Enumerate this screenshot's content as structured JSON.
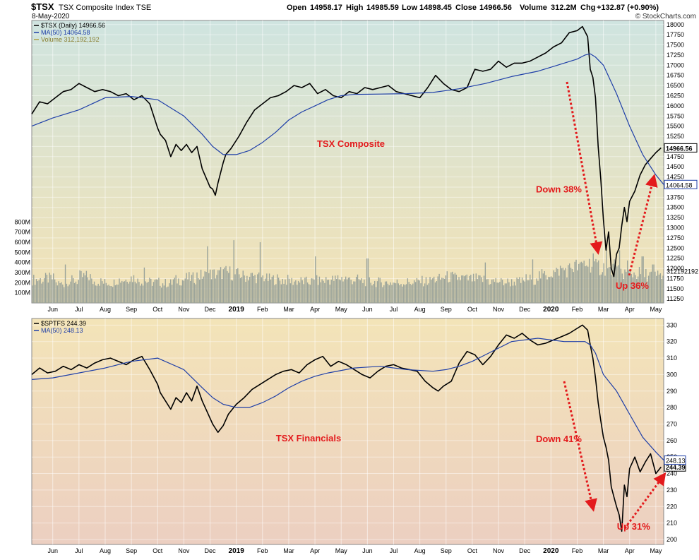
{
  "colors": {
    "price_line": "#000000",
    "ma_line": "#1f3fa8",
    "volume": "#9aa39a",
    "annotation": "#e31a1c",
    "top_bg_top": "#cfe4e0",
    "top_bg_bottom": "#f3e2b4",
    "bottom_bg_top": "#f3e4b8",
    "bottom_bg_bottom": "#eccfc1"
  },
  "header": {
    "symbol": "$TSX",
    "name": "TSX Composite Index  TSE",
    "date": "8-May-2020",
    "open_label": "Open",
    "open": "14958.17",
    "high_label": "High",
    "high": "14985.59",
    "low_label": "Low",
    "low": "14898.45",
    "close_label": "Close",
    "close": "14966.56",
    "volume_label": "Volume",
    "volume": "312.2M",
    "chg_label": "Chg",
    "chg": "+132.87 (+0.90%)",
    "credit": "© StockCharts.com"
  },
  "chart_data": [
    {
      "type": "line",
      "panel": "TSX Composite",
      "legend": [
        "$TSX (Daily) 14966.56",
        "MA(50) 14064.58",
        "Volume 312,192,192"
      ],
      "watermark": "TSX Composite",
      "x_ticks": [
        "Jun",
        "Jul",
        "Aug",
        "Sep",
        "Oct",
        "Nov",
        "Dec",
        "2019",
        "Feb",
        "Mar",
        "Apr",
        "May",
        "Jun",
        "Jul",
        "Aug",
        "Sep",
        "Oct",
        "Nov",
        "Dec",
        "2020",
        "Feb",
        "Mar",
        "Apr",
        "May"
      ],
      "x_tick_pos": [
        1.5,
        2.5,
        3.5,
        4.5,
        5.5,
        6.5,
        7.5,
        8.5,
        9.5,
        10.5,
        11.5,
        12.5,
        13.5,
        14.5,
        15.5,
        16.5,
        17.5,
        18.5,
        19.5,
        20.5,
        21.5,
        22.5,
        23.5,
        24.5
      ],
      "x_range": [
        0.7,
        24.8
      ],
      "y_range": [
        11150,
        18100
      ],
      "y_ticks": [
        11250,
        11500,
        11750,
        12000,
        12250,
        12500,
        12750,
        13000,
        13250,
        13500,
        13750,
        14000,
        14250,
        14500,
        14750,
        15000,
        15250,
        15500,
        15750,
        16000,
        16250,
        16500,
        16750,
        17000,
        17250,
        17500,
        17750,
        18000
      ],
      "last_price_label": "14966.56",
      "last_ma_label": "14064.58",
      "last_volume_label": "312192192",
      "series": [
        {
          "name": "$TSX (Daily)",
          "x": [
            0.7,
            1.0,
            1.3,
            1.6,
            1.9,
            2.2,
            2.5,
            2.8,
            3.1,
            3.4,
            3.7,
            4.0,
            4.3,
            4.6,
            4.9,
            5.2,
            5.5,
            5.6,
            5.8,
            6.0,
            6.2,
            6.4,
            6.6,
            6.8,
            7.0,
            7.2,
            7.4,
            7.5,
            7.6,
            7.7,
            7.8,
            7.9,
            8.0,
            8.1,
            8.3,
            8.6,
            8.9,
            9.2,
            9.5,
            9.8,
            10.1,
            10.4,
            10.7,
            11.0,
            11.3,
            11.6,
            11.9,
            12.2,
            12.5,
            12.8,
            13.1,
            13.4,
            13.7,
            14.0,
            14.3,
            14.6,
            14.9,
            15.2,
            15.5,
            15.8,
            16.1,
            16.4,
            16.7,
            17.0,
            17.3,
            17.6,
            17.9,
            18.2,
            18.5,
            18.8,
            19.1,
            19.4,
            19.7,
            20.0,
            20.3,
            20.6,
            20.9,
            21.2,
            21.5,
            21.7,
            21.9,
            22.0,
            22.1,
            22.2,
            22.3,
            22.4,
            22.5,
            22.6,
            22.7,
            22.8,
            22.9,
            23.0,
            23.1,
            23.2,
            23.3,
            23.4,
            23.5,
            23.7,
            23.9,
            24.1,
            24.3,
            24.5,
            24.7
          ],
          "y": [
            15800,
            16100,
            16050,
            16200,
            16350,
            16400,
            16550,
            16450,
            16350,
            16400,
            16350,
            16250,
            16300,
            16150,
            16250,
            16050,
            15450,
            15300,
            15150,
            14750,
            15050,
            14900,
            15050,
            14850,
            15000,
            14450,
            14150,
            14000,
            13950,
            13800,
            14100,
            14350,
            14600,
            14800,
            14950,
            15250,
            15600,
            15900,
            16050,
            16200,
            16250,
            16350,
            16500,
            16450,
            16550,
            16300,
            16400,
            16250,
            16200,
            16350,
            16300,
            16450,
            16400,
            16450,
            16500,
            16350,
            16300,
            16250,
            16200,
            16450,
            16750,
            16550,
            16400,
            16350,
            16450,
            16900,
            16850,
            16900,
            17100,
            16950,
            17050,
            17050,
            17100,
            17200,
            17300,
            17450,
            17550,
            17800,
            17850,
            17950,
            17700,
            16900,
            16700,
            16200,
            15000,
            14200,
            13200,
            12450,
            12900,
            12000,
            11800,
            12350,
            12500,
            13050,
            13500,
            13150,
            13650,
            13900,
            14300,
            14550,
            14700,
            14850,
            14966
          ]
        },
        {
          "name": "MA(50)",
          "x": [
            0.7,
            1.5,
            2.5,
            3.5,
            4.5,
            5.5,
            6.5,
            7.2,
            7.6,
            8.0,
            8.5,
            9.0,
            9.5,
            10.0,
            10.5,
            11.0,
            11.5,
            12.0,
            12.5,
            13.0,
            14.0,
            15.0,
            16.0,
            17.0,
            18.0,
            19.0,
            20.0,
            20.5,
            21.0,
            21.5,
            21.8,
            22.0,
            22.2,
            22.5,
            23.0,
            23.5,
            24.0,
            24.5,
            24.8
          ],
          "y": [
            15500,
            15700,
            15900,
            16200,
            16230,
            16150,
            15750,
            15300,
            15000,
            14800,
            14800,
            14900,
            15100,
            15350,
            15650,
            15850,
            16000,
            16150,
            16250,
            16280,
            16290,
            16300,
            16330,
            16420,
            16550,
            16720,
            16850,
            16950,
            17050,
            17150,
            17250,
            17280,
            17200,
            17000,
            16300,
            15500,
            14800,
            14300,
            14064
          ]
        }
      ],
      "volume": {
        "y_range": [
          0,
          900
        ],
        "y_ticks": [
          100,
          200,
          300,
          400,
          500,
          600,
          700,
          800
        ],
        "y_tick_labels": [
          "100M",
          "200M",
          "300M",
          "400M",
          "500M",
          "600M",
          "700M",
          "800M"
        ],
        "spikes": [
          [
            2.0,
            380
          ],
          [
            5.0,
            350
          ],
          [
            7.4,
            560
          ],
          [
            8.4,
            620
          ],
          [
            9.4,
            600
          ],
          [
            11.5,
            460
          ],
          [
            13.5,
            440
          ],
          [
            18.0,
            400
          ],
          [
            19.8,
            430
          ],
          [
            21.6,
            400
          ],
          [
            22.1,
            490
          ],
          [
            22.3,
            420
          ],
          [
            22.6,
            530
          ],
          [
            22.9,
            430
          ],
          [
            23.1,
            520
          ],
          [
            23.4,
            420
          ],
          [
            24.0,
            460
          ],
          [
            24.4,
            380
          ]
        ],
        "values": [
          230,
          240,
          190,
          220,
          260,
          210,
          200,
          230,
          250,
          215,
          205,
          195,
          225,
          245,
          270,
          285,
          300,
          280,
          265,
          255,
          235,
          225,
          215,
          210,
          220,
          230,
          245,
          230,
          215,
          205,
          200,
          200,
          205,
          215,
          235,
          255,
          245,
          235,
          230,
          215,
          205,
          210,
          235,
          270,
          300,
          330,
          360,
          390,
          350,
          320,
          300,
          290,
          280,
          270
        ]
      },
      "annotations": [
        {
          "text": "Down 38%",
          "x": 20.8,
          "y": 13870
        },
        {
          "text": "Up 36%",
          "x": 23.6,
          "y": 11500
        }
      ]
    },
    {
      "type": "line",
      "panel": "TSX Financials",
      "legend": [
        "$SPTFS 244.39",
        "MA(50) 248.13"
      ],
      "watermark": "TSX Financials",
      "x_ticks": [
        "Jun",
        "Jul",
        "Aug",
        "Sep",
        "Oct",
        "Nov",
        "Dec",
        "2019",
        "Feb",
        "Mar",
        "Apr",
        "May",
        "Jun",
        "Jul",
        "Aug",
        "Sep",
        "Oct",
        "Nov",
        "Dec",
        "2020",
        "Feb",
        "Mar",
        "Apr",
        "May"
      ],
      "x_tick_pos": [
        1.5,
        2.5,
        3.5,
        4.5,
        5.5,
        6.5,
        7.5,
        8.5,
        9.5,
        10.5,
        11.5,
        12.5,
        13.5,
        14.5,
        15.5,
        16.5,
        17.5,
        18.5,
        19.5,
        20.5,
        21.5,
        22.5,
        23.5,
        24.5
      ],
      "x_range": [
        0.7,
        24.8
      ],
      "y_range": [
        197,
        334
      ],
      "y_ticks": [
        200,
        210,
        220,
        230,
        240,
        250,
        260,
        270,
        280,
        290,
        300,
        310,
        320,
        330
      ],
      "last_price_label": "244.39",
      "last_ma_label": "248.13",
      "series": [
        {
          "name": "$SPTFS",
          "x": [
            0.7,
            1.0,
            1.3,
            1.6,
            1.9,
            2.2,
            2.5,
            2.8,
            3.1,
            3.4,
            3.7,
            4.0,
            4.3,
            4.6,
            4.9,
            5.2,
            5.5,
            5.6,
            5.8,
            6.0,
            6.2,
            6.4,
            6.6,
            6.8,
            7.0,
            7.2,
            7.4,
            7.6,
            7.8,
            8.0,
            8.2,
            8.5,
            8.8,
            9.1,
            9.4,
            9.7,
            10.0,
            10.3,
            10.6,
            10.9,
            11.2,
            11.5,
            11.8,
            12.1,
            12.4,
            12.7,
            13.0,
            13.3,
            13.6,
            13.9,
            14.2,
            14.5,
            14.8,
            15.1,
            15.4,
            15.7,
            16.0,
            16.2,
            16.4,
            16.7,
            17.0,
            17.3,
            17.6,
            17.9,
            18.2,
            18.5,
            18.8,
            19.1,
            19.4,
            19.7,
            20.0,
            20.3,
            20.6,
            20.9,
            21.2,
            21.5,
            21.7,
            21.9,
            22.0,
            22.1,
            22.2,
            22.3,
            22.4,
            22.5,
            22.6,
            22.7,
            22.8,
            22.9,
            23.0,
            23.1,
            23.2,
            23.3,
            23.4,
            23.5,
            23.7,
            23.9,
            24.1,
            24.3,
            24.5,
            24.7
          ],
          "y": [
            300,
            304,
            301,
            302,
            305,
            303,
            306,
            304,
            307,
            309,
            310,
            308,
            306,
            309,
            311,
            303,
            294,
            289,
            284,
            279,
            286,
            283,
            289,
            284,
            293,
            284,
            277,
            270,
            265,
            269,
            276,
            282,
            286,
            291,
            294,
            297,
            300,
            302,
            303,
            301,
            306,
            309,
            311,
            305,
            308,
            306,
            303,
            300,
            298,
            302,
            305,
            306,
            304,
            303,
            302,
            296,
            292,
            290,
            293,
            296,
            307,
            314,
            312,
            306,
            311,
            318,
            324,
            322,
            325,
            321,
            318,
            319,
            321,
            323,
            325,
            328,
            330,
            327,
            318,
            310,
            298,
            283,
            272,
            262,
            256,
            248,
            232,
            226,
            220,
            215,
            205,
            233,
            226,
            243,
            250,
            241,
            247,
            252,
            240,
            244
          ]
        },
        {
          "name": "MA(50)",
          "x": [
            0.7,
            1.5,
            2.5,
            3.5,
            4.5,
            5.5,
            6.5,
            7.2,
            7.6,
            8.0,
            8.5,
            9.0,
            9.5,
            10.0,
            10.5,
            11.0,
            11.5,
            12.0,
            13.0,
            14.0,
            15.0,
            16.0,
            16.5,
            17.0,
            17.5,
            18.0,
            18.5,
            19.0,
            20.0,
            20.5,
            21.0,
            21.5,
            21.8,
            22.0,
            22.2,
            22.5,
            23.0,
            23.5,
            24.0,
            24.5,
            24.8
          ],
          "y": [
            297,
            298,
            301,
            304,
            308,
            310,
            303,
            292,
            286,
            282,
            280,
            280,
            283,
            287,
            292,
            296,
            299,
            301,
            304,
            305,
            303,
            302,
            303,
            305,
            308,
            312,
            316,
            320,
            322,
            321,
            320,
            320,
            320,
            318,
            313,
            300,
            290,
            276,
            262,
            253,
            248.13
          ]
        }
      ],
      "annotations": [
        {
          "text": "Down 41%",
          "x": 20.8,
          "y": 259
        },
        {
          "text": "Up 31%",
          "x": 23.65,
          "y": 206
        }
      ]
    }
  ]
}
